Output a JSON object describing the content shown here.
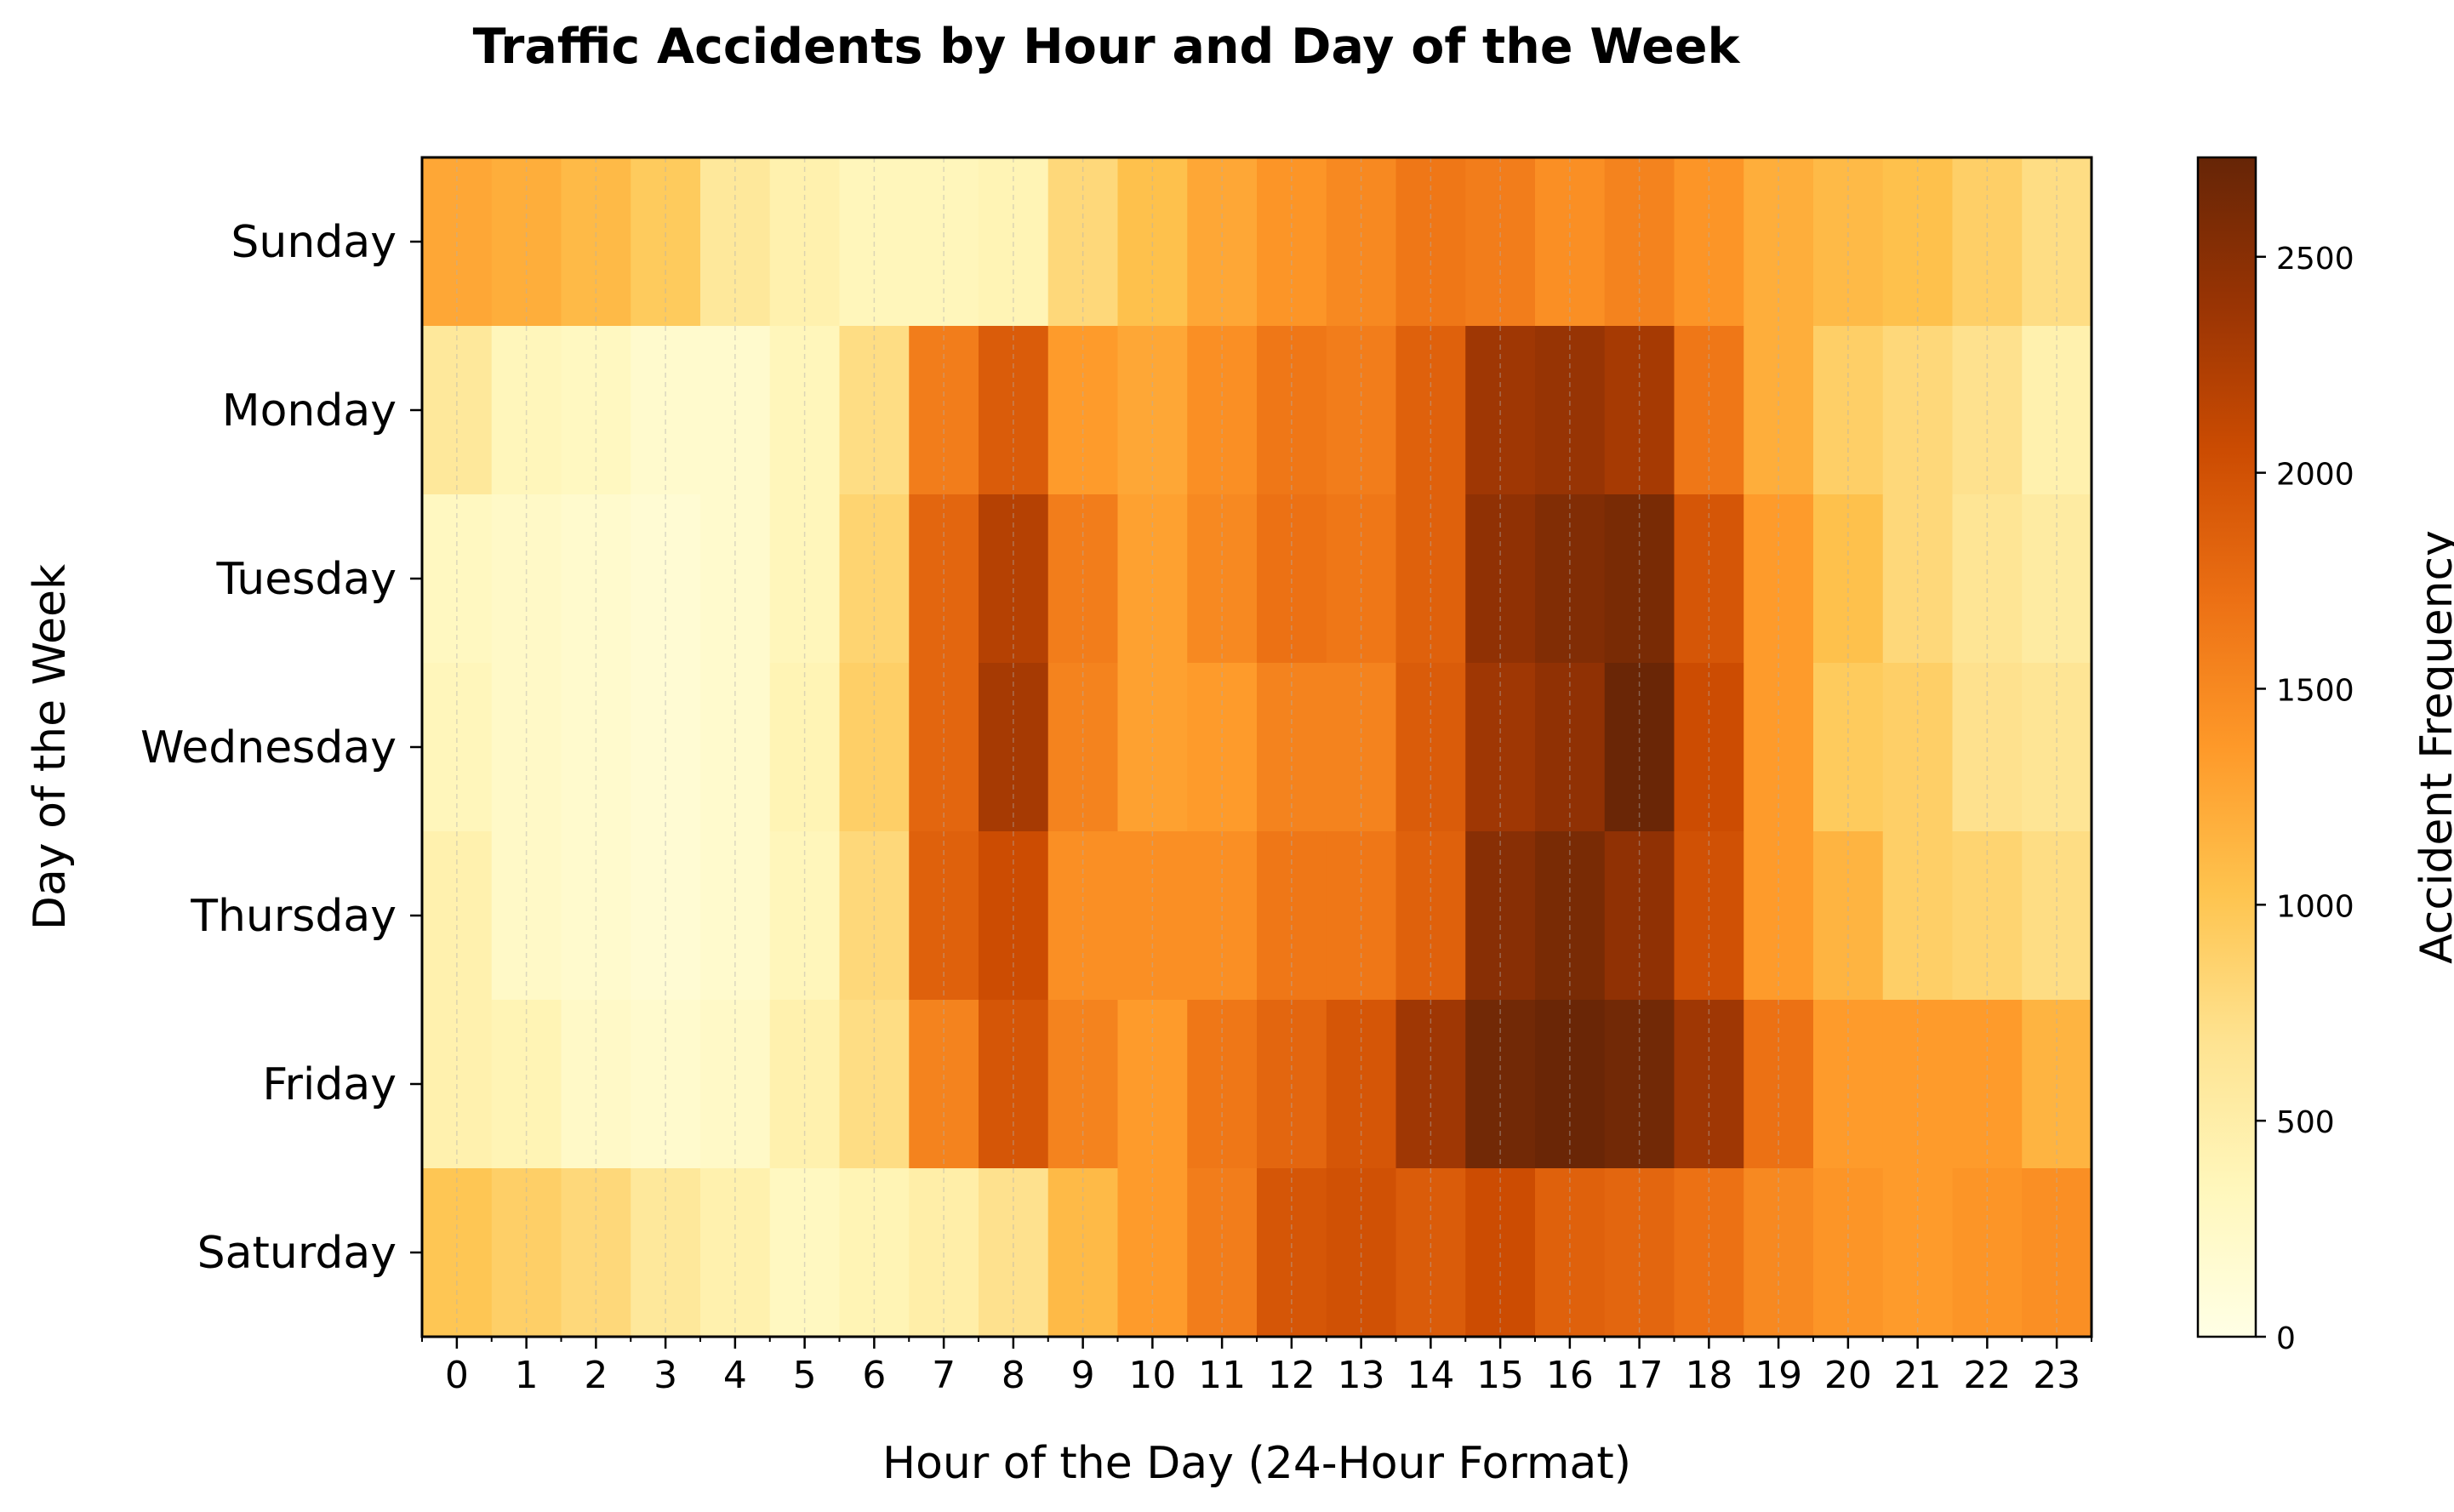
{
  "chart_data": {
    "type": "heatmap",
    "title": "Traffic Accidents by Hour and Day of the Week",
    "xlabel": "Hour of the Day (24-Hour Format)",
    "ylabel": "Day of the Week",
    "colorbar_label": "Accident Frequency",
    "x": [
      "0",
      "1",
      "2",
      "3",
      "4",
      "5",
      "6",
      "7",
      "8",
      "9",
      "10",
      "11",
      "12",
      "13",
      "14",
      "15",
      "16",
      "17",
      "18",
      "19",
      "20",
      "21",
      "22",
      "23"
    ],
    "y": [
      "Sunday",
      "Monday",
      "Tuesday",
      "Wednesday",
      "Thursday",
      "Friday",
      "Saturday"
    ],
    "values": [
      [
        1250,
        1200,
        1100,
        950,
        600,
        450,
        350,
        350,
        400,
        800,
        1050,
        1250,
        1400,
        1500,
        1650,
        1600,
        1450,
        1550,
        1400,
        1200,
        1100,
        1050,
        900,
        750
      ],
      [
        600,
        350,
        300,
        200,
        200,
        350,
        750,
        1600,
        1900,
        1350,
        1250,
        1450,
        1650,
        1600,
        1850,
        2350,
        2400,
        2300,
        1650,
        1200,
        900,
        800,
        700,
        450
      ],
      [
        300,
        250,
        200,
        150,
        200,
        350,
        850,
        1800,
        2200,
        1600,
        1300,
        1500,
        1700,
        1650,
        1850,
        2450,
        2550,
        2600,
        1950,
        1350,
        1050,
        800,
        650,
        550
      ],
      [
        350,
        250,
        200,
        150,
        200,
        400,
        900,
        1800,
        2300,
        1550,
        1300,
        1350,
        1550,
        1550,
        1900,
        2350,
        2450,
        2700,
        2050,
        1350,
        950,
        900,
        700,
        650
      ],
      [
        450,
        250,
        200,
        150,
        200,
        350,
        800,
        1850,
        2050,
        1450,
        1450,
        1450,
        1650,
        1650,
        1850,
        2500,
        2600,
        2450,
        2000,
        1350,
        1150,
        900,
        850,
        750
      ],
      [
        450,
        400,
        250,
        200,
        250,
        450,
        750,
        1550,
        1950,
        1550,
        1350,
        1650,
        1800,
        1950,
        2350,
        2650,
        2700,
        2650,
        2350,
        1700,
        1350,
        1350,
        1350,
        1150
      ],
      [
        1000,
        900,
        800,
        600,
        450,
        300,
        400,
        500,
        700,
        1100,
        1350,
        1600,
        1950,
        2000,
        1900,
        2050,
        1850,
        1800,
        1700,
        1500,
        1400,
        1350,
        1400,
        1450
      ]
    ],
    "vmin": 0,
    "vmax": 2730,
    "colorbar_ticks": [
      0,
      500,
      1000,
      1500,
      2000,
      2500
    ],
    "colormap": "YlOrBr",
    "colormap_stops": [
      "#ffffe5",
      "#fff7bc",
      "#fee391",
      "#fec44f",
      "#fe9929",
      "#ec7014",
      "#cc4c02",
      "#993404",
      "#662506"
    ]
  }
}
